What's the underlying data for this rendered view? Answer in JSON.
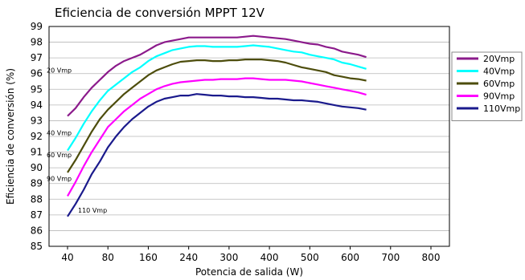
{
  "chart_data": {
    "type": "line",
    "title": "Eficiencia de conversión MPPT 12V",
    "xlabel": "Potencia de salida (W)",
    "ylabel": "Eficiencia de conversión (%)",
    "x_ticks": [
      "40",
      "80",
      "160",
      "240",
      "300",
      "400",
      "500",
      "600",
      "700",
      "800"
    ],
    "ylim": [
      85,
      99
    ],
    "y_ticks": [
      "85",
      "86",
      "87",
      "88",
      "89",
      "90",
      "91",
      "92",
      "93",
      "94",
      "95",
      "96",
      "97",
      "98",
      "99"
    ],
    "grid": true,
    "legend_position": "right",
    "series": [
      {
        "name": "20Vmp",
        "color": "#8B1A8B",
        "annotation": "20 Vmp",
        "points": [
          [
            0,
            93.3
          ],
          [
            0.2,
            93.8
          ],
          [
            0.4,
            94.5
          ],
          [
            0.6,
            95.1
          ],
          [
            0.8,
            95.6
          ],
          [
            1,
            96.1
          ],
          [
            1.2,
            96.5
          ],
          [
            1.4,
            96.8
          ],
          [
            1.6,
            97.0
          ],
          [
            1.8,
            97.2
          ],
          [
            2,
            97.5
          ],
          [
            2.2,
            97.8
          ],
          [
            2.4,
            98.0
          ],
          [
            2.6,
            98.1
          ],
          [
            2.8,
            98.2
          ],
          [
            3,
            98.3
          ],
          [
            3.2,
            98.3
          ],
          [
            3.4,
            98.3
          ],
          [
            3.6,
            98.3
          ],
          [
            3.8,
            98.3
          ],
          [
            4,
            98.3
          ],
          [
            4.2,
            98.3
          ],
          [
            4.4,
            98.35
          ],
          [
            4.6,
            98.4
          ],
          [
            4.8,
            98.35
          ],
          [
            5,
            98.3
          ],
          [
            5.2,
            98.25
          ],
          [
            5.4,
            98.2
          ],
          [
            5.6,
            98.1
          ],
          [
            5.8,
            98.0
          ],
          [
            6,
            97.9
          ],
          [
            6.2,
            97.85
          ],
          [
            6.4,
            97.7
          ],
          [
            6.6,
            97.6
          ],
          [
            6.8,
            97.4
          ],
          [
            7,
            97.3
          ],
          [
            7.2,
            97.2
          ],
          [
            7.4,
            97.05
          ]
        ]
      },
      {
        "name": "40Vmp",
        "color": "#00FFFF",
        "annotation": "40 Vmp",
        "points": [
          [
            0,
            91.1
          ],
          [
            0.2,
            91.9
          ],
          [
            0.4,
            92.8
          ],
          [
            0.6,
            93.6
          ],
          [
            0.8,
            94.3
          ],
          [
            1,
            94.9
          ],
          [
            1.2,
            95.3
          ],
          [
            1.4,
            95.7
          ],
          [
            1.6,
            96.1
          ],
          [
            1.8,
            96.4
          ],
          [
            2,
            96.8
          ],
          [
            2.2,
            97.1
          ],
          [
            2.4,
            97.3
          ],
          [
            2.6,
            97.5
          ],
          [
            2.8,
            97.6
          ],
          [
            3,
            97.7
          ],
          [
            3.2,
            97.75
          ],
          [
            3.4,
            97.75
          ],
          [
            3.6,
            97.7
          ],
          [
            3.8,
            97.7
          ],
          [
            4,
            97.7
          ],
          [
            4.2,
            97.7
          ],
          [
            4.4,
            97.75
          ],
          [
            4.6,
            97.8
          ],
          [
            4.8,
            97.75
          ],
          [
            5,
            97.7
          ],
          [
            5.2,
            97.6
          ],
          [
            5.4,
            97.5
          ],
          [
            5.6,
            97.4
          ],
          [
            5.8,
            97.35
          ],
          [
            6,
            97.2
          ],
          [
            6.2,
            97.1
          ],
          [
            6.4,
            97.0
          ],
          [
            6.6,
            96.9
          ],
          [
            6.8,
            96.7
          ],
          [
            7,
            96.6
          ],
          [
            7.2,
            96.45
          ],
          [
            7.4,
            96.3
          ]
        ]
      },
      {
        "name": "60Vmp",
        "color": "#4D4D0C",
        "annotation": "60 Vmp",
        "points": [
          [
            0,
            89.7
          ],
          [
            0.2,
            90.5
          ],
          [
            0.4,
            91.4
          ],
          [
            0.6,
            92.3
          ],
          [
            0.8,
            93.1
          ],
          [
            1,
            93.7
          ],
          [
            1.2,
            94.2
          ],
          [
            1.4,
            94.7
          ],
          [
            1.6,
            95.1
          ],
          [
            1.8,
            95.5
          ],
          [
            2,
            95.9
          ],
          [
            2.2,
            96.2
          ],
          [
            2.4,
            96.4
          ],
          [
            2.6,
            96.6
          ],
          [
            2.8,
            96.75
          ],
          [
            3,
            96.8
          ],
          [
            3.2,
            96.85
          ],
          [
            3.4,
            96.85
          ],
          [
            3.6,
            96.8
          ],
          [
            3.8,
            96.8
          ],
          [
            4,
            96.85
          ],
          [
            4.2,
            96.85
          ],
          [
            4.4,
            96.9
          ],
          [
            4.6,
            96.9
          ],
          [
            4.8,
            96.9
          ],
          [
            5,
            96.85
          ],
          [
            5.2,
            96.8
          ],
          [
            5.4,
            96.7
          ],
          [
            5.6,
            96.55
          ],
          [
            5.8,
            96.4
          ],
          [
            6,
            96.3
          ],
          [
            6.2,
            96.2
          ],
          [
            6.4,
            96.1
          ],
          [
            6.6,
            95.9
          ],
          [
            6.8,
            95.8
          ],
          [
            7,
            95.7
          ],
          [
            7.2,
            95.65
          ],
          [
            7.4,
            95.55
          ]
        ]
      },
      {
        "name": "90Vmp",
        "color": "#FF00FF",
        "annotation": "90 Vmp",
        "points": [
          [
            0,
            88.2
          ],
          [
            0.2,
            89.1
          ],
          [
            0.4,
            90.1
          ],
          [
            0.6,
            91.0
          ],
          [
            0.8,
            91.8
          ],
          [
            1,
            92.6
          ],
          [
            1.2,
            93.1
          ],
          [
            1.4,
            93.6
          ],
          [
            1.6,
            94.0
          ],
          [
            1.8,
            94.4
          ],
          [
            2,
            94.7
          ],
          [
            2.2,
            95.0
          ],
          [
            2.4,
            95.2
          ],
          [
            2.6,
            95.35
          ],
          [
            2.8,
            95.45
          ],
          [
            3,
            95.5
          ],
          [
            3.2,
            95.55
          ],
          [
            3.4,
            95.6
          ],
          [
            3.6,
            95.6
          ],
          [
            3.8,
            95.65
          ],
          [
            4,
            95.65
          ],
          [
            4.2,
            95.65
          ],
          [
            4.4,
            95.7
          ],
          [
            4.6,
            95.7
          ],
          [
            4.8,
            95.65
          ],
          [
            5,
            95.6
          ],
          [
            5.2,
            95.6
          ],
          [
            5.4,
            95.6
          ],
          [
            5.6,
            95.55
          ],
          [
            5.8,
            95.5
          ],
          [
            6,
            95.4
          ],
          [
            6.2,
            95.3
          ],
          [
            6.4,
            95.2
          ],
          [
            6.6,
            95.1
          ],
          [
            6.8,
            95.0
          ],
          [
            7,
            94.9
          ],
          [
            7.2,
            94.8
          ],
          [
            7.4,
            94.65
          ]
        ]
      },
      {
        "name": "110Vmp",
        "color": "#1A1A8C",
        "annotation": "110  Vmp",
        "points": [
          [
            0,
            86.9
          ],
          [
            0.2,
            87.7
          ],
          [
            0.4,
            88.6
          ],
          [
            0.6,
            89.6
          ],
          [
            0.8,
            90.4
          ],
          [
            1,
            91.3
          ],
          [
            1.2,
            92.0
          ],
          [
            1.4,
            92.6
          ],
          [
            1.6,
            93.1
          ],
          [
            1.8,
            93.5
          ],
          [
            2,
            93.9
          ],
          [
            2.2,
            94.2
          ],
          [
            2.4,
            94.4
          ],
          [
            2.6,
            94.5
          ],
          [
            2.8,
            94.6
          ],
          [
            3,
            94.6
          ],
          [
            3.2,
            94.7
          ],
          [
            3.4,
            94.65
          ],
          [
            3.6,
            94.6
          ],
          [
            3.8,
            94.6
          ],
          [
            4,
            94.55
          ],
          [
            4.2,
            94.55
          ],
          [
            4.4,
            94.5
          ],
          [
            4.6,
            94.5
          ],
          [
            4.8,
            94.45
          ],
          [
            5,
            94.4
          ],
          [
            5.2,
            94.4
          ],
          [
            5.4,
            94.35
          ],
          [
            5.6,
            94.3
          ],
          [
            5.8,
            94.3
          ],
          [
            6,
            94.25
          ],
          [
            6.2,
            94.2
          ],
          [
            6.4,
            94.1
          ],
          [
            6.6,
            94.0
          ],
          [
            6.8,
            93.9
          ],
          [
            7,
            93.85
          ],
          [
            7.2,
            93.8
          ],
          [
            7.4,
            93.7
          ]
        ]
      }
    ]
  }
}
